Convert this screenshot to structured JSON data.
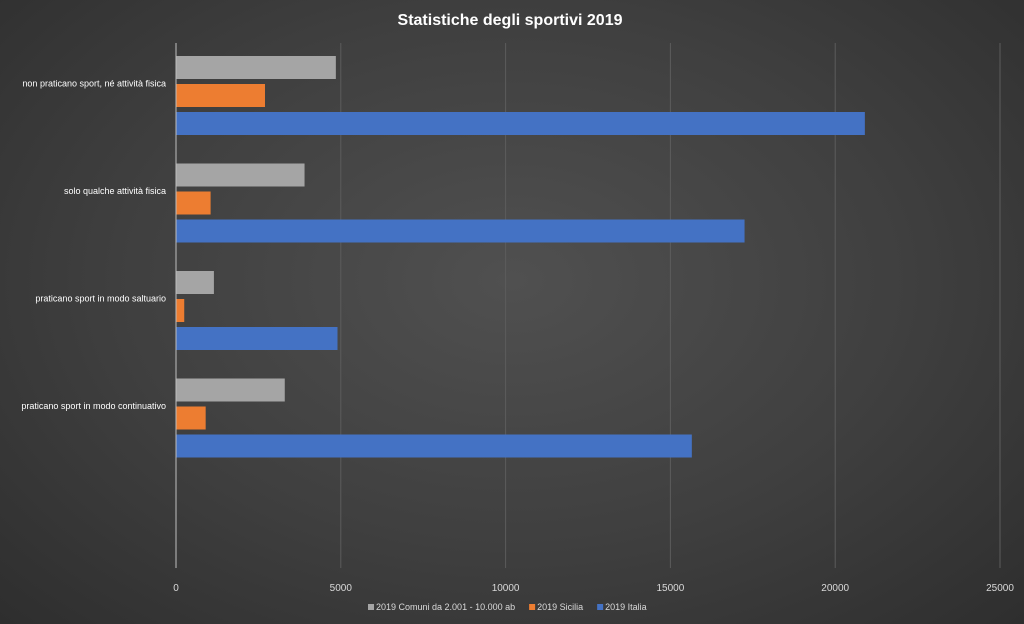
{
  "chart_data": {
    "type": "bar",
    "orientation": "horizontal",
    "title": "Statistiche degli sportivi 2019",
    "categories": [
      "non praticano sport, né attività fisica",
      "solo qualche attività fisica",
      "praticano sport  in modo saltuario",
      "praticano sport in modo continuativo"
    ],
    "series": [
      {
        "name": "2019 Comuni da 2.001 - 10.000 ab",
        "color": "#a5a5a5",
        "values": [
          4850,
          3900,
          1150,
          3300
        ]
      },
      {
        "name": "2019 Sicilia",
        "color": "#ed7d31",
        "values": [
          2700,
          1050,
          250,
          900
        ]
      },
      {
        "name": "2019 Italia",
        "color": "#4472c4",
        "values": [
          20900,
          17250,
          4900,
          15650
        ]
      }
    ],
    "xlim": [
      0,
      25000
    ],
    "xticks": [
      "0",
      "5000",
      "10000",
      "15000",
      "20000",
      "25000"
    ],
    "grid": true,
    "legend_position": "bottom"
  }
}
